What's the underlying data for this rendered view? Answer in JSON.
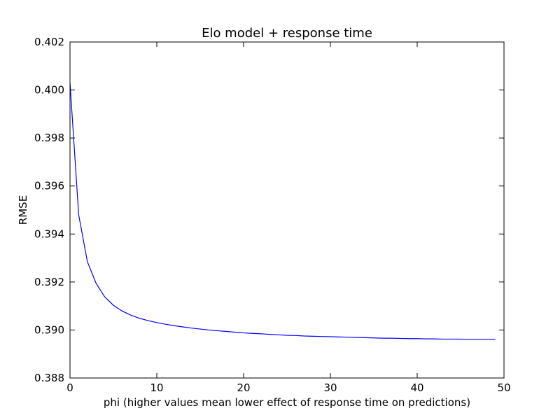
{
  "chart_data": {
    "type": "line",
    "title": "Elo model + response time",
    "xlabel": "phi (higher values mean lower effect of response time on predictions)",
    "ylabel": "RMSE",
    "xlim": [
      0,
      50
    ],
    "ylim": [
      0.388,
      0.402
    ],
    "xticks": [
      0,
      10,
      20,
      30,
      40,
      50
    ],
    "xtick_labels": [
      "0",
      "10",
      "20",
      "30",
      "40",
      "50"
    ],
    "yticks": [
      0.388,
      0.39,
      0.392,
      0.394,
      0.396,
      0.398,
      0.4,
      0.402
    ],
    "ytick_labels": [
      "0.388",
      "0.390",
      "0.392",
      "0.394",
      "0.396",
      "0.398",
      "0.400",
      "0.402"
    ],
    "grid": false,
    "series": [
      {
        "color": "#0000ff",
        "x": [
          0,
          1,
          2,
          3,
          4,
          5,
          6,
          7,
          8,
          9,
          10,
          11,
          12,
          13,
          14,
          15,
          16,
          17,
          18,
          19,
          20,
          21,
          22,
          23,
          24,
          25,
          26,
          27,
          28,
          29,
          30,
          31,
          32,
          33,
          34,
          35,
          36,
          37,
          38,
          39,
          40,
          41,
          42,
          43,
          44,
          45,
          46,
          47,
          48,
          49
        ],
        "y": [
          0.4003,
          0.3948,
          0.39285,
          0.39195,
          0.39138,
          0.39103,
          0.39079,
          0.39062,
          0.39049,
          0.39039,
          0.39031,
          0.39024,
          0.39018,
          0.39013,
          0.39008,
          0.39004,
          0.39,
          0.38997,
          0.38994,
          0.38991,
          0.38988,
          0.38986,
          0.38984,
          0.38982,
          0.3898,
          0.38978,
          0.38977,
          0.38975,
          0.38974,
          0.38973,
          0.38972,
          0.38971,
          0.3897,
          0.38969,
          0.38968,
          0.38967,
          0.38966,
          0.38966,
          0.38965,
          0.38964,
          0.38964,
          0.38963,
          0.38963,
          0.38962,
          0.38962,
          0.38962,
          0.38961,
          0.38961,
          0.38961,
          0.38961
        ]
      }
    ]
  }
}
